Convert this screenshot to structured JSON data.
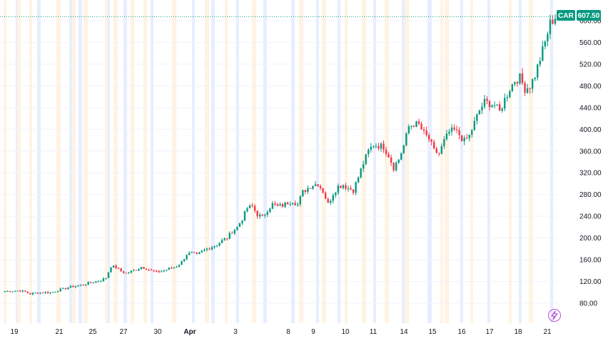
{
  "chart_data": {
    "type": "candlestick",
    "symbol": "CAR",
    "last_price": "607.50",
    "ylim": [
      70,
      625
    ],
    "y_ticks": [
      "80.00",
      "120.00",
      "160.00",
      "200.00",
      "240.00",
      "280.00",
      "320.00",
      "360.00",
      "400.00",
      "440.00",
      "480.00",
      "520.00",
      "560.00",
      "600.00"
    ],
    "x_ticks": [
      "19",
      "21",
      "25",
      "27",
      "30",
      "Apr",
      "3",
      "8",
      "9",
      "10",
      "11",
      "14",
      "15",
      "16",
      "17",
      "18",
      "21"
    ],
    "bold_x_ticks": [
      "Apr"
    ],
    "anchors": [
      [
        0,
        102
      ],
      [
        6,
        103
      ],
      [
        8,
        101
      ],
      [
        10,
        97
      ],
      [
        12,
        99
      ],
      [
        16,
        100
      ],
      [
        18,
        99
      ],
      [
        22,
        105
      ],
      [
        26,
        110
      ],
      [
        30,
        113
      ],
      [
        34,
        118
      ],
      [
        38,
        122
      ],
      [
        40,
        127
      ],
      [
        42,
        148
      ],
      [
        44,
        146
      ],
      [
        46,
        139
      ],
      [
        48,
        135
      ],
      [
        52,
        142
      ],
      [
        54,
        147
      ],
      [
        56,
        144
      ],
      [
        58,
        140
      ],
      [
        60,
        137
      ],
      [
        62,
        139
      ],
      [
        64,
        142
      ],
      [
        68,
        148
      ],
      [
        70,
        156
      ],
      [
        72,
        170
      ],
      [
        74,
        172
      ],
      [
        76,
        168
      ],
      [
        78,
        175
      ],
      [
        80,
        180
      ],
      [
        82,
        184
      ],
      [
        84,
        188
      ],
      [
        86,
        195
      ],
      [
        88,
        200
      ],
      [
        90,
        212
      ],
      [
        92,
        220
      ],
      [
        94,
        235
      ],
      [
        96,
        255
      ],
      [
        98,
        258
      ],
      [
        100,
        243
      ],
      [
        102,
        238
      ],
      [
        104,
        252
      ],
      [
        106,
        262
      ],
      [
        108,
        258
      ],
      [
        110,
        260
      ],
      [
        112,
        265
      ],
      [
        114,
        268
      ],
      [
        116,
        262
      ],
      [
        118,
        285
      ],
      [
        120,
        292
      ],
      [
        122,
        298
      ],
      [
        124,
        300
      ],
      [
        126,
        286
      ],
      [
        128,
        262
      ],
      [
        130,
        282
      ],
      [
        132,
        295
      ],
      [
        134,
        298
      ],
      [
        136,
        292
      ],
      [
        138,
        288
      ],
      [
        140,
        312
      ],
      [
        142,
        338
      ],
      [
        144,
        360
      ],
      [
        146,
        372
      ],
      [
        148,
        370
      ],
      [
        150,
        368
      ],
      [
        152,
        352
      ],
      [
        154,
        330
      ],
      [
        156,
        345
      ],
      [
        158,
        370
      ],
      [
        160,
        405
      ],
      [
        162,
        410
      ],
      [
        164,
        408
      ],
      [
        166,
        392
      ],
      [
        168,
        382
      ],
      [
        170,
        360
      ],
      [
        172,
        355
      ],
      [
        174,
        378
      ],
      [
        176,
        395
      ],
      [
        178,
        398
      ],
      [
        180,
        390
      ],
      [
        182,
        378
      ],
      [
        184,
        388
      ],
      [
        186,
        412
      ],
      [
        188,
        435
      ],
      [
        190,
        450
      ],
      [
        192,
        448
      ],
      [
        194,
        445
      ],
      [
        196,
        432
      ],
      [
        198,
        455
      ],
      [
        200,
        475
      ],
      [
        202,
        490
      ],
      [
        204,
        495
      ],
      [
        206,
        475
      ],
      [
        208,
        480
      ],
      [
        210,
        500
      ],
      [
        212,
        530
      ],
      [
        214,
        560
      ],
      [
        216,
        595
      ],
      [
        218,
        607
      ]
    ],
    "bar_count": 219,
    "last_bar_color": "#089981",
    "up_color": "#089981",
    "down_color": "#f23645",
    "session_bands": [
      {
        "color": "#fff3e3",
        "ranges": [
          [
            5,
            9
          ],
          [
            23,
            29
          ],
          [
            41,
            45
          ],
          [
            79,
            85
          ],
          [
            101,
            106
          ],
          [
            117,
            123
          ],
          [
            147,
            152
          ],
          [
            159,
            165
          ],
          [
            183,
            188
          ],
          [
            201,
            206
          ],
          [
            241,
            247
          ],
          [
            287,
            293
          ],
          [
            315,
            319
          ],
          [
            353,
            359
          ],
          [
            419,
            425
          ],
          [
            451,
            457
          ],
          [
            483,
            487
          ],
          [
            507,
            513
          ],
          [
            539,
            545
          ],
          [
            567,
            573
          ],
          [
            617,
            621
          ],
          [
            623,
            629
          ],
          [
            659,
            663
          ],
          [
            713,
            717
          ],
          [
            741,
            747
          ]
        ]
      },
      {
        "color": "#e7eeff",
        "ranges": [
          [
            22,
            24
          ],
          [
            52,
            57
          ],
          [
            97,
            101
          ],
          [
            110,
            115
          ],
          [
            151,
            154
          ],
          [
            173,
            178
          ],
          [
            211,
            215
          ],
          [
            269,
            273
          ],
          [
            296,
            301
          ],
          [
            331,
            335
          ],
          [
            369,
            374
          ],
          [
            408,
            413
          ],
          [
            443,
            447
          ],
          [
            473,
            477
          ],
          [
            523,
            527
          ],
          [
            563,
            567
          ],
          [
            599,
            605
          ],
          [
            645,
            649
          ],
          [
            683,
            687
          ],
          [
            727,
            731
          ],
          [
            771,
            775
          ]
        ]
      }
    ]
  }
}
